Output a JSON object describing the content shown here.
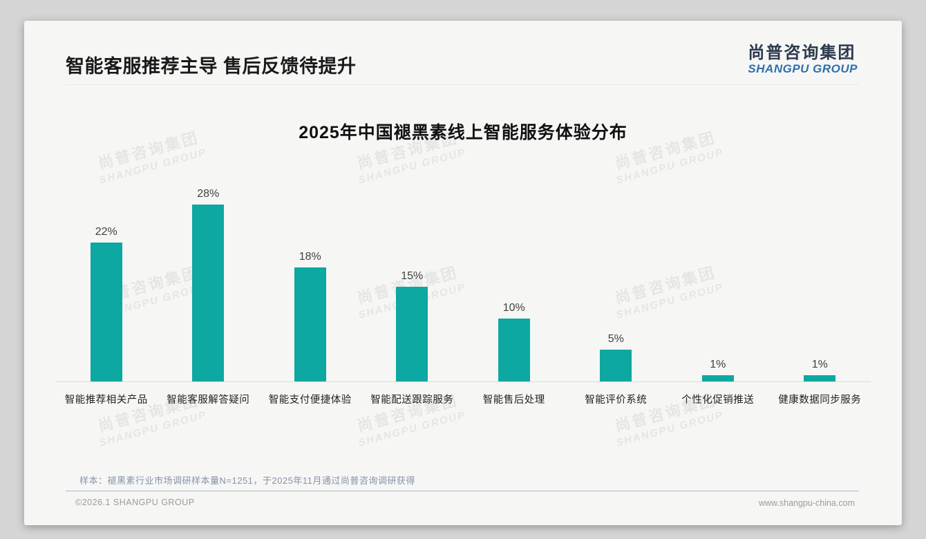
{
  "page": {
    "title": "智能客服推荐主导 售后反馈待提升",
    "logo": {
      "cn": "尚普咨询集团",
      "en": "SHANGPU GROUP"
    },
    "watermark": {
      "line1": "尚普咨询集团",
      "line2": "SHANGPU GROUP"
    },
    "note": "样本：褪黑素行业市场调研样本量N=1251，于2025年11月通过尚普咨询调研获得",
    "footer": {
      "left": "©2026.1 SHANGPU GROUP",
      "right": "www.shangpu-china.com"
    }
  },
  "colors": {
    "bar": "#0ca8a1",
    "logo_cn": "#2c3a4e",
    "logo_en": "#2e70ad"
  },
  "chart_data": {
    "type": "bar",
    "title": "2025年中国褪黑素线上智能服务体验分布",
    "categories": [
      "智能推荐相关产品",
      "智能客服解答疑问",
      "智能支付便捷体验",
      "智能配送跟踪服务",
      "智能售后处理",
      "智能评价系统",
      "个性化促销推送",
      "健康数据同步服务"
    ],
    "values": [
      22,
      28,
      18,
      15,
      10,
      5,
      1,
      1
    ],
    "value_labels": [
      "22%",
      "28%",
      "18%",
      "15%",
      "10%",
      "5%",
      "1%",
      "1%"
    ],
    "unit": "%",
    "xlabel": "",
    "ylabel": "",
    "ylim": [
      0,
      30
    ],
    "grid": false,
    "legend": false,
    "bar_color": "#0ca8a1"
  }
}
